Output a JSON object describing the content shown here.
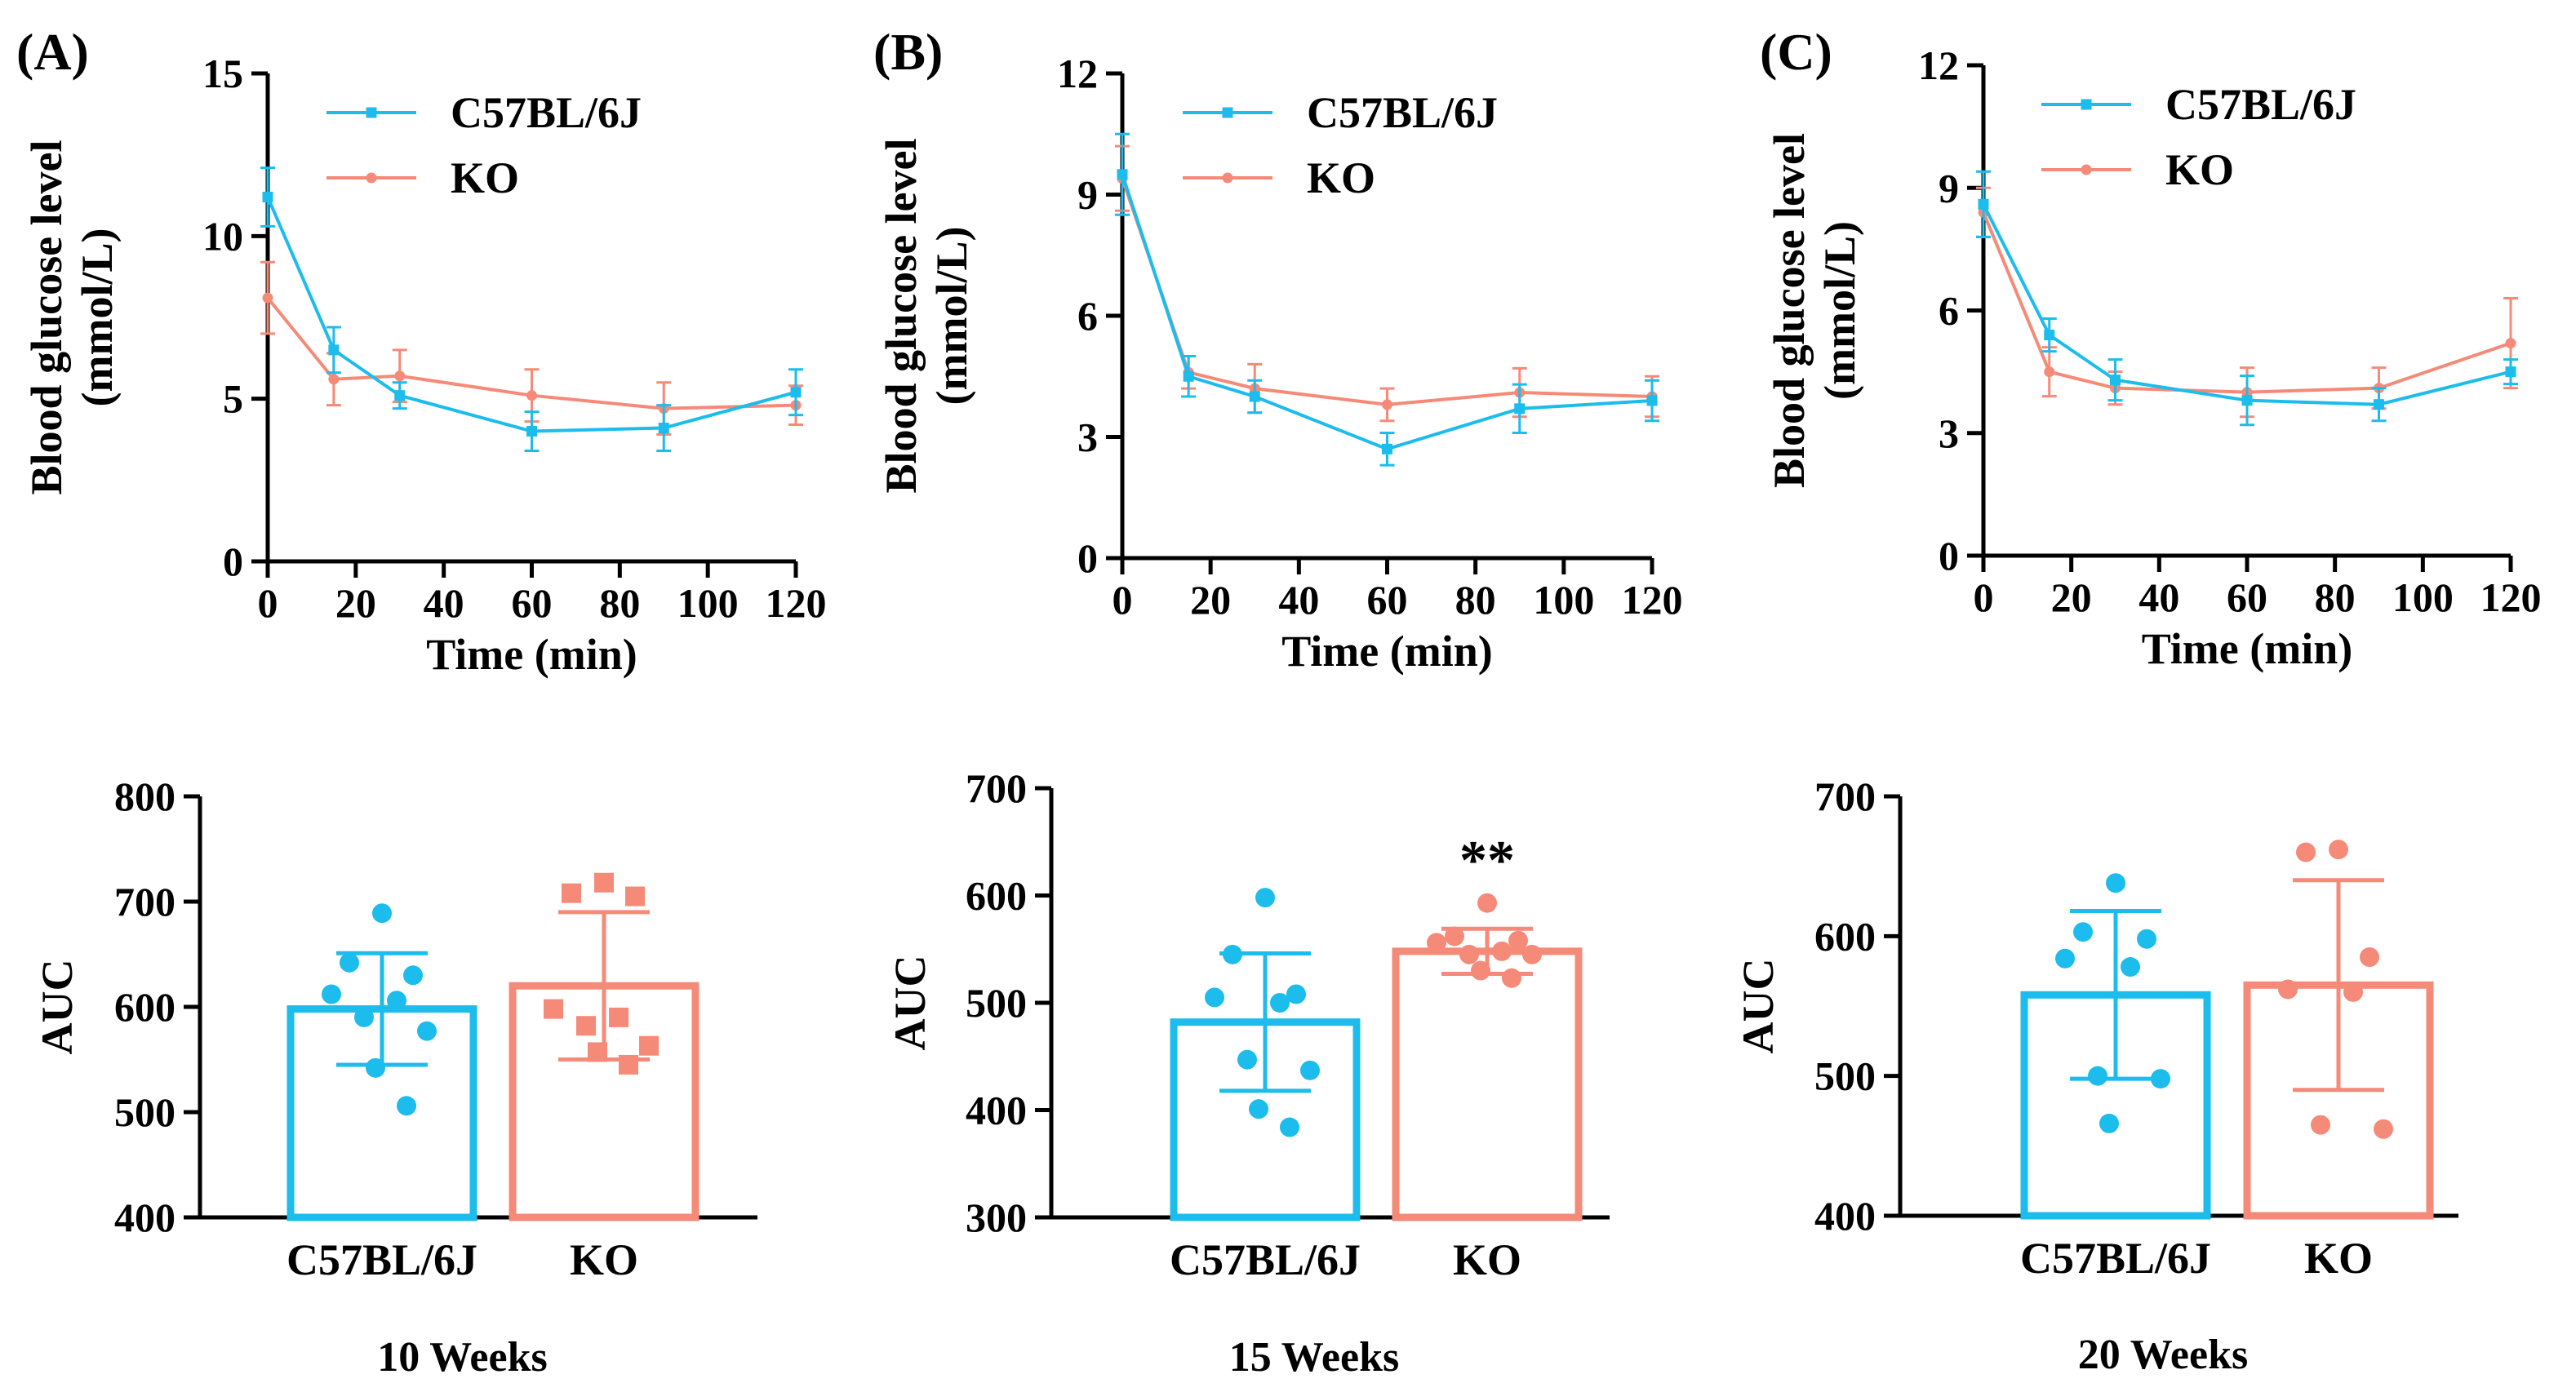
{
  "colors": {
    "c57": "#1cbcec",
    "ko": "#f58a78",
    "axis": "#000000"
  },
  "chart_data": [
    {
      "type": "line",
      "panel": "(A)",
      "xlabel": "Time (min)",
      "ylabel_line1": "Blood glucose level",
      "ylabel_line2": "(mmol/L)",
      "xlim": [
        0,
        120
      ],
      "ylim": [
        0,
        15
      ],
      "x_ticks": [
        0,
        20,
        40,
        60,
        80,
        100,
        120
      ],
      "y_ticks": [
        0,
        5,
        10,
        15
      ],
      "legend_position": "top-right",
      "x": [
        0,
        15,
        30,
        60,
        90,
        120
      ],
      "series": [
        {
          "name": "C57BL/6J",
          "color_key": "c57",
          "marker": "square",
          "values": [
            11.2,
            6.5,
            5.1,
            4.0,
            4.1,
            5.2
          ],
          "errors": [
            0.9,
            0.7,
            0.4,
            0.6,
            0.7,
            0.7
          ]
        },
        {
          "name": "KO",
          "color_key": "ko",
          "marker": "circle",
          "values": [
            8.1,
            5.6,
            5.7,
            5.1,
            4.7,
            4.8
          ],
          "errors": [
            1.1,
            0.8,
            0.8,
            0.8,
            0.8,
            0.6
          ]
        }
      ]
    },
    {
      "type": "line",
      "panel": "(B)",
      "xlabel": "Time (min)",
      "ylabel_line1": "Blood glucose level",
      "ylabel_line2": "(mmol/L)",
      "xlim": [
        0,
        120
      ],
      "ylim": [
        0,
        12
      ],
      "x_ticks": [
        0,
        20,
        40,
        60,
        80,
        100,
        120
      ],
      "y_ticks": [
        0,
        3,
        6,
        9,
        12
      ],
      "legend_position": "top-right",
      "x": [
        0,
        15,
        30,
        60,
        90,
        120
      ],
      "series": [
        {
          "name": "C57BL/6J",
          "color_key": "c57",
          "marker": "square",
          "values": [
            9.5,
            4.5,
            4.0,
            2.7,
            3.7,
            3.9
          ],
          "errors": [
            1.0,
            0.5,
            0.4,
            0.4,
            0.6,
            0.5
          ]
        },
        {
          "name": "KO",
          "color_key": "ko",
          "marker": "circle",
          "values": [
            9.4,
            4.6,
            4.2,
            3.8,
            4.1,
            4.0
          ],
          "errors": [
            0.8,
            0.4,
            0.6,
            0.4,
            0.6,
            0.5
          ]
        }
      ]
    },
    {
      "type": "line",
      "panel": "(C)",
      "xlabel": "Time (min)",
      "ylabel_line1": "Blood glucose level",
      "ylabel_line2": "(mmol/L)",
      "xlim": [
        0,
        120
      ],
      "ylim": [
        0,
        12
      ],
      "x_ticks": [
        0,
        20,
        40,
        60,
        80,
        100,
        120
      ],
      "y_ticks": [
        0,
        3,
        6,
        9,
        12
      ],
      "legend_position": "top-right",
      "x": [
        0,
        15,
        30,
        60,
        90,
        120
      ],
      "series": [
        {
          "name": "C57BL/6J",
          "color_key": "c57",
          "marker": "square",
          "values": [
            8.6,
            5.4,
            4.3,
            3.8,
            3.7,
            4.5
          ],
          "errors": [
            0.8,
            0.4,
            0.5,
            0.6,
            0.4,
            0.3
          ]
        },
        {
          "name": "KO",
          "color_key": "ko",
          "marker": "circle",
          "values": [
            8.4,
            4.5,
            4.1,
            4.0,
            4.1,
            5.2
          ],
          "errors": [
            0.6,
            0.6,
            0.4,
            0.6,
            0.5,
            1.1
          ]
        }
      ]
    },
    {
      "type": "bar",
      "week_label": "10 Weeks",
      "ylabel": "AUC",
      "ylim": [
        400,
        800
      ],
      "y_ticks": [
        400,
        500,
        600,
        700,
        800
      ],
      "significance": "",
      "categories": [
        "C57BL/6J",
        "KO"
      ],
      "series": [
        {
          "name": "C57BL/6J",
          "color_key": "c57",
          "marker": "circle",
          "mean": 598,
          "sd": 53,
          "points": [
            689,
            642,
            630,
            612,
            606,
            590,
            577,
            542,
            506
          ]
        },
        {
          "name": "KO",
          "color_key": "ko",
          "marker": "square",
          "mean": 620,
          "sd": 70,
          "points": [
            718,
            708,
            705,
            598,
            590,
            582,
            563,
            557,
            545
          ]
        }
      ]
    },
    {
      "type": "bar",
      "week_label": "15 Weeks",
      "ylabel": "AUC",
      "ylim": [
        300,
        700
      ],
      "y_ticks": [
        300,
        400,
        500,
        600,
        700
      ],
      "significance": "**",
      "categories": [
        "C57BL/6J",
        "KO"
      ],
      "series": [
        {
          "name": "C57BL/6J",
          "color_key": "c57",
          "marker": "circle",
          "mean": 482,
          "sd": 64,
          "points": [
            598,
            545,
            508,
            505,
            500,
            447,
            437,
            401,
            384
          ]
        },
        {
          "name": "KO",
          "color_key": "ko",
          "marker": "circle",
          "mean": 548,
          "sd": 21,
          "points": [
            593,
            562,
            558,
            556,
            548,
            545,
            545,
            530,
            523
          ]
        }
      ]
    },
    {
      "type": "bar",
      "week_label": "20 Weeks",
      "ylabel": "AUC",
      "ylim": [
        400,
        700
      ],
      "y_ticks": [
        400,
        500,
        600,
        700
      ],
      "significance": "",
      "categories": [
        "C57BL/6J",
        "KO"
      ],
      "series": [
        {
          "name": "C57BL/6J",
          "color_key": "c57",
          "marker": "circle",
          "mean": 558,
          "sd": 60,
          "points": [
            638,
            603,
            598,
            584,
            578,
            500,
            498,
            466
          ]
        },
        {
          "name": "KO",
          "color_key": "ko",
          "marker": "circle",
          "mean": 565,
          "sd": 75,
          "points": [
            662,
            660,
            585,
            562,
            560,
            465,
            462
          ]
        }
      ]
    }
  ]
}
